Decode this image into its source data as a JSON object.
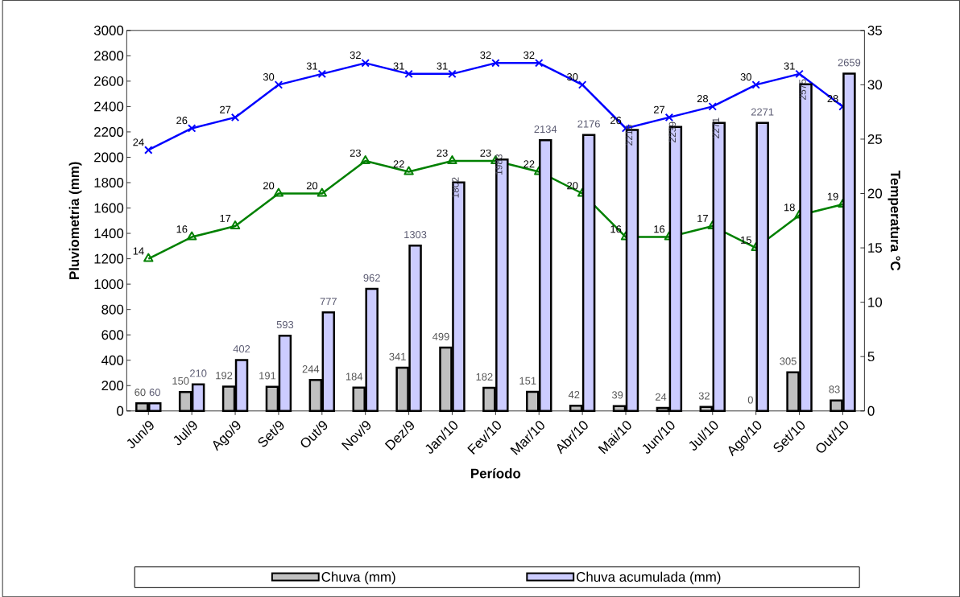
{
  "chart_data": {
    "type": "bar",
    "xlabel": "Período",
    "ylabel": "Pluviometria (mm)",
    "y2label": "Temperatura °C",
    "categories": [
      "Jun/9",
      "Jul/9",
      "Ago/9",
      "Set/9",
      "Out/9",
      "Nov/9",
      "Dez/9",
      "Jan/10",
      "Fev/10",
      "Mar/10",
      "Abr/10",
      "Mai/10",
      "Jun/10",
      "Jul/10",
      "Ago/10",
      "Set/10",
      "Out/10"
    ],
    "series": [
      {
        "name": "Chuva (mm)",
        "color": "#c0c0c0",
        "values": [
          60,
          150,
          192,
          191,
          244,
          184,
          341,
          499,
          182,
          151,
          42,
          39,
          24,
          32,
          0,
          305,
          83
        ]
      },
      {
        "name": "Chuva acumulada (mm)",
        "color": "#ccccff",
        "values": [
          60,
          210,
          402,
          593,
          777,
          962,
          1303,
          1802,
          1983,
          2134,
          2176,
          2215,
          2239,
          2271,
          2271,
          2575,
          2659
        ]
      },
      {
        "type": "line",
        "axis": "y2",
        "color": "#0000ff",
        "marker": "cross",
        "values": [
          24,
          26,
          27,
          30,
          31,
          32,
          31,
          31,
          32,
          32,
          30,
          26,
          27,
          28,
          30,
          31,
          28
        ]
      },
      {
        "type": "line",
        "axis": "y2",
        "color": "#008000",
        "marker": "triangle",
        "values": [
          14,
          16,
          17,
          20,
          20,
          23,
          22,
          23,
          23,
          22,
          20,
          16,
          16,
          17,
          15,
          18,
          19
        ]
      }
    ],
    "ylim": [
      0,
      3000
    ],
    "yticks": [
      0,
      200,
      400,
      600,
      800,
      1000,
      1200,
      1400,
      1600,
      1800,
      2000,
      2200,
      2400,
      2600,
      2800,
      3000
    ],
    "y2lim": [
      0,
      35
    ],
    "y2ticks": [
      0,
      5,
      10,
      15,
      20,
      25,
      30,
      35
    ],
    "legend": "bottom",
    "data_labels": true,
    "grid": false
  }
}
